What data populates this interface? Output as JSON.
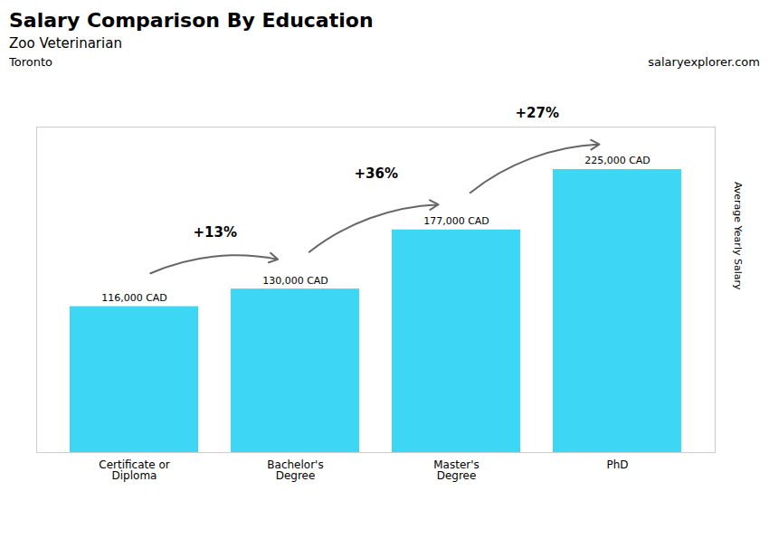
{
  "chart_data": {
    "type": "bar",
    "title": "Salary Comparison By Education",
    "subtitle": "Zoo Veterinarian",
    "ylabel": "Average Yearly Salary",
    "categories": [
      "Certificate or\nDiploma",
      "Bachelor's\nDegree",
      "Master's\nDegree",
      "PhD"
    ],
    "values": [
      116000,
      130000,
      177000,
      225000
    ],
    "value_labels": [
      "116,000 CAD",
      "130,000 CAD",
      "177,000 CAD",
      "225,000 CAD"
    ],
    "data_labels": true,
    "color": "#3dd6f5",
    "ylim": [
      0,
      258750
    ],
    "tick_labels": "x",
    "annotations": [
      {
        "text": "Toronto"
      },
      {
        "text": "salaryexplorer.com"
      },
      {
        "text": "+13%",
        "from": "Certificate or\nDiploma",
        "to": "Bachelor's\nDegree"
      },
      {
        "text": "+36%",
        "from": "Bachelor's\nDegree",
        "to": "Master's\nDegree"
      },
      {
        "text": "+27%",
        "from": "Master's\nDegree",
        "to": "PhD"
      }
    ]
  }
}
